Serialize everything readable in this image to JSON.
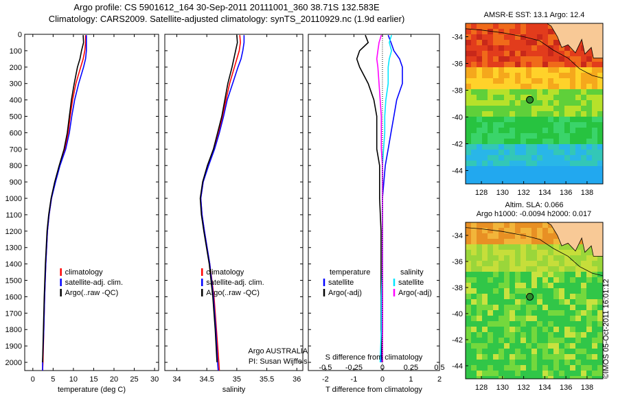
{
  "header": {
    "line1": "Argo profile: CS 5901612_164 30-Sep-2011 20111001_360 38.71S 132.583E",
    "line2": "Climatology: CARS2009. Satellite-adjusted climatology: synTS_20110929.nc (1.9d earlier)"
  },
  "colors": {
    "climatology": "#ff0000",
    "satellite": "#0000ff",
    "argo": "#000000",
    "temp_satellite": "#00e5ff",
    "sal_argo": "#ff00ff"
  },
  "chart_data": [
    {
      "type": "line",
      "ylabel": "",
      "xlabel": "temperature (deg C)",
      "xlim": [
        -2,
        31
      ],
      "ylim": [
        2050,
        0
      ],
      "xticks": [
        0,
        5,
        10,
        15,
        20,
        25,
        30
      ],
      "yticks": [
        0,
        100,
        200,
        300,
        400,
        500,
        600,
        700,
        800,
        900,
        1000,
        1100,
        1200,
        1300,
        1400,
        1500,
        1600,
        1700,
        1800,
        1900,
        2000
      ],
      "legend": [
        "climatology",
        "satellite-adj. clim.",
        "Argo(..raw -QC)"
      ],
      "series": [
        {
          "name": "climatology",
          "color": "#ff0000",
          "depth": [
            5,
            50,
            100,
            150,
            200,
            300,
            400,
            500,
            600,
            700,
            800,
            900,
            1000,
            1100,
            1200,
            1400,
            1600,
            1800,
            2000,
            2050
          ],
          "values": [
            13.0,
            13.0,
            12.8,
            12.4,
            11.8,
            10.6,
            9.8,
            9.2,
            8.7,
            7.9,
            6.6,
            5.5,
            4.6,
            4.0,
            3.6,
            3.2,
            2.9,
            2.7,
            2.5,
            2.4
          ]
        },
        {
          "name": "satellite-adj. clim.",
          "color": "#0000ff",
          "depth": [
            5,
            50,
            100,
            150,
            200,
            300,
            400,
            500,
            600,
            700,
            800,
            900,
            1000,
            1100,
            1200,
            1400,
            1600,
            1800,
            2000,
            2050
          ],
          "values": [
            13.2,
            13.2,
            13.2,
            13.0,
            12.5,
            11.3,
            10.3,
            9.6,
            9.0,
            8.1,
            6.7,
            5.6,
            4.6,
            4.0,
            3.6,
            3.2,
            2.9,
            2.7,
            2.4,
            2.4
          ]
        },
        {
          "name": "Argo(..raw -QC)",
          "color": "#000000",
          "depth": [
            5,
            50,
            100,
            150,
            200,
            300,
            400,
            500,
            600,
            700,
            800,
            900,
            1000,
            1100,
            1200,
            1400,
            1600,
            1800,
            2000
          ],
          "values": [
            12.4,
            12.5,
            12.0,
            11.6,
            11.0,
            10.2,
            9.5,
            9.0,
            8.5,
            7.7,
            6.5,
            5.4,
            4.5,
            3.9,
            3.5,
            3.1,
            2.8,
            2.6,
            2.4
          ]
        }
      ]
    },
    {
      "type": "line",
      "xlabel": "salinity",
      "xlim": [
        33.8,
        36.1
      ],
      "ylim": [
        2050,
        0
      ],
      "xticks": [
        34,
        34.5,
        35,
        35.5,
        36
      ],
      "legend": [
        "climatology",
        "satellite-adj. clim.",
        "Argo(..raw -QC)"
      ],
      "annotation": [
        "Argo AUSTRALIA",
        "PI: Susan Wijffels"
      ],
      "series": [
        {
          "name": "climatology",
          "color": "#ff0000",
          "depth": [
            5,
            50,
            100,
            150,
            200,
            300,
            400,
            500,
            600,
            700,
            800,
            900,
            1000,
            1100,
            1200,
            1400,
            1600,
            1800,
            2000,
            2050
          ],
          "values": [
            35.05,
            35.06,
            35.04,
            35.0,
            34.96,
            34.88,
            34.82,
            34.76,
            34.7,
            34.62,
            34.52,
            34.44,
            34.4,
            34.42,
            34.46,
            34.55,
            34.62,
            34.66,
            34.7,
            34.71
          ]
        },
        {
          "name": "satellite-adj. clim.",
          "color": "#0000ff",
          "depth": [
            5,
            50,
            100,
            150,
            200,
            300,
            400,
            500,
            600,
            700,
            800,
            900,
            1000,
            1100,
            1200,
            1400,
            1600,
            1800,
            2000,
            2050
          ],
          "values": [
            35.12,
            35.12,
            35.1,
            35.07,
            35.02,
            34.93,
            34.84,
            34.78,
            34.71,
            34.63,
            34.53,
            34.44,
            34.4,
            34.42,
            34.46,
            34.55,
            34.61,
            34.65,
            34.68,
            34.69
          ]
        },
        {
          "name": "Argo(..raw -QC)",
          "color": "#000000",
          "depth": [
            5,
            50,
            100,
            150,
            200,
            300,
            400,
            500,
            600,
            700,
            800,
            900,
            1000,
            1100,
            1200,
            1400,
            1600,
            1800,
            2000
          ],
          "values": [
            35.0,
            35.01,
            34.98,
            34.95,
            34.92,
            34.85,
            34.8,
            34.75,
            34.68,
            34.61,
            34.51,
            34.43,
            34.39,
            34.41,
            34.45,
            34.54,
            34.6,
            34.64,
            34.67
          ]
        }
      ]
    },
    {
      "type": "line",
      "xlabel": "T difference from climatology",
      "xlabel_top": "S difference from climatology",
      "xlim": [
        -2.6,
        2.0
      ],
      "ylim": [
        2050,
        0
      ],
      "xticks": [
        -2,
        -1,
        0,
        1,
        2
      ],
      "xticks_top": [
        "-0.5",
        "-0.25",
        "0",
        "0.25",
        "0.5"
      ],
      "legend_left": [
        "temperature",
        "satellite",
        "Argo(-adj)"
      ],
      "legend_right": [
        "salinity",
        "satellite",
        "Argo(-adj)"
      ],
      "series": [
        {
          "name": "temperature satellite",
          "color": "#0000ff",
          "depth": [
            5,
            50,
            100,
            150,
            200,
            300,
            400,
            500,
            600,
            700,
            800,
            900,
            1000,
            1200,
            1400,
            1600,
            1800,
            2000
          ],
          "values": [
            0.2,
            0.3,
            0.4,
            0.6,
            0.7,
            0.7,
            0.5,
            0.4,
            0.3,
            0.2,
            0.1,
            0.05,
            0.0,
            0.0,
            0.0,
            0.0,
            0.0,
            -0.05
          ]
        },
        {
          "name": "temperature Argo(-adj)",
          "color": "#000000",
          "depth": [
            5,
            50,
            100,
            150,
            200,
            300,
            400,
            500,
            600,
            700,
            800,
            900,
            1000,
            1200,
            1400,
            1600,
            1800,
            2000
          ],
          "values": [
            -0.6,
            -0.5,
            -0.8,
            -0.9,
            -0.8,
            -0.5,
            -0.3,
            -0.2,
            -0.2,
            -0.2,
            -0.1,
            -0.1,
            -0.1,
            -0.05,
            -0.05,
            -0.05,
            -0.05,
            0.0
          ]
        },
        {
          "name": "salinity satellite",
          "color": "#00e5ff",
          "depth": [
            5,
            50,
            100,
            150,
            200,
            300,
            400,
            500,
            600,
            700,
            800,
            900,
            1000,
            1200,
            1400,
            1600,
            1800,
            2000
          ],
          "values": [
            0.08,
            0.06,
            0.08,
            0.06,
            0.05,
            0.05,
            0.03,
            0.02,
            0.02,
            0.01,
            0.0,
            0.0,
            0.0,
            0.0,
            0.0,
            -0.01,
            -0.01,
            -0.02
          ]
        },
        {
          "name": "salinity Argo(-adj)",
          "color": "#ff00ff",
          "depth": [
            5,
            50,
            100,
            150,
            200,
            300,
            400,
            500,
            600,
            700,
            800,
            900,
            1000,
            1200,
            1400,
            1600,
            1800,
            2000
          ],
          "values": [
            -0.01,
            -0.03,
            -0.04,
            -0.05,
            -0.04,
            -0.03,
            -0.02,
            -0.01,
            -0.01,
            -0.01,
            0.0,
            0.0,
            0.0,
            0.0,
            0.0,
            0.0,
            0.0,
            0.0
          ]
        }
      ]
    },
    {
      "type": "heatmap",
      "title": "AMSR-E SST: 13.1  Argo: 12.4",
      "xticks": [
        128,
        130,
        132,
        134,
        136,
        138
      ],
      "yticks": [
        -34,
        -36,
        -38,
        -40,
        -42,
        -44
      ],
      "xlim": [
        126.5,
        139.5
      ],
      "ylim": [
        -45,
        -33
      ],
      "marker": {
        "lon": 132.583,
        "lat": -38.71
      }
    },
    {
      "type": "heatmap",
      "title": "Altim. SLA: 0.066",
      "subtitle": "Argo h1000: -0.0094 h2000: 0.017",
      "xticks": [
        128,
        130,
        132,
        134,
        136,
        138
      ],
      "yticks": [
        -34,
        -36,
        -38,
        -40,
        -42,
        -44
      ],
      "xlim": [
        126.5,
        139.5
      ],
      "ylim": [
        -45,
        -33
      ],
      "marker": {
        "lon": 132.583,
        "lat": -38.71
      }
    }
  ],
  "credit": "©IMOS 05-Oct-2011 16:01:12"
}
